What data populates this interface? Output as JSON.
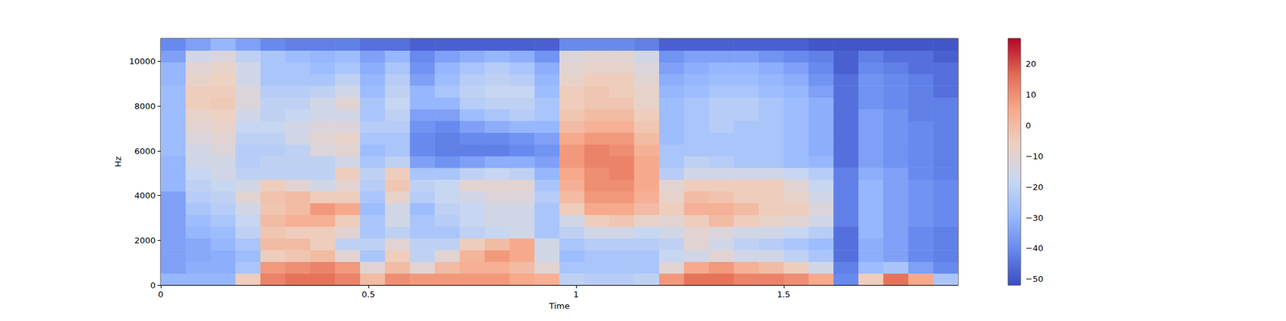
{
  "chart_data": {
    "type": "spectrogram",
    "x_label": "Time",
    "y_label": "Hz",
    "xlim": [
      0,
      1.92
    ],
    "xticks": [
      0,
      0.5,
      1,
      1.5
    ],
    "ylim": [
      0,
      11025
    ],
    "yticks": [
      0,
      2000,
      4000,
      6000,
      8000,
      10000
    ],
    "grid": false,
    "time_bins": [
      0,
      0.06,
      0.12,
      0.18,
      0.24,
      0.3,
      0.36,
      0.42,
      0.48,
      0.54,
      0.6,
      0.66,
      0.72,
      0.78,
      0.84,
      0.9,
      0.96,
      1.02,
      1.08,
      1.14,
      1.2,
      1.26,
      1.32,
      1.38,
      1.44,
      1.5,
      1.56,
      1.62,
      1.68,
      1.74,
      1.8,
      1.86,
      1.92
    ],
    "freq_bins": [
      0,
      525,
      1050,
      1575,
      2100,
      2625,
      3150,
      3675,
      4200,
      4725,
      5250,
      5775,
      6300,
      6825,
      7350,
      7875,
      8400,
      8925,
      9450,
      9975,
      10500,
      11025
    ],
    "cells": [
      [
        -30,
        -35,
        -35,
        -35,
        -35,
        -35,
        -35,
        -35,
        -30,
        -30,
        -30,
        -28,
        -28,
        -28,
        -28,
        -28,
        -28,
        -30,
        -30,
        -35,
        -40
      ],
      [
        -30,
        -32,
        -33,
        -33,
        -30,
        -28,
        -25,
        -22,
        -20,
        -18,
        -15,
        -15,
        -12,
        -10,
        -8,
        -5,
        -5,
        -8,
        -10,
        -15,
        -35
      ],
      [
        -30,
        -32,
        -32,
        -30,
        -28,
        -25,
        -22,
        -20,
        -18,
        -15,
        -15,
        -12,
        -10,
        -8,
        -6,
        -4,
        -5,
        -6,
        -8,
        -12,
        -30
      ],
      [
        -5,
        -25,
        -28,
        -25,
        -20,
        -18,
        -15,
        -10,
        -15,
        -20,
        -22,
        -22,
        -20,
        -18,
        -15,
        -12,
        -12,
        -15,
        -15,
        -20,
        -35
      ],
      [
        12,
        8,
        -5,
        0,
        -3,
        0,
        -3,
        -2,
        -5,
        -20,
        -20,
        -22,
        -20,
        -18,
        -20,
        -20,
        -22,
        -25,
        -25,
        -25,
        -40
      ],
      [
        15,
        10,
        -3,
        0,
        -5,
        3,
        0,
        0,
        -10,
        -20,
        -20,
        -20,
        -15,
        -15,
        -18,
        -20,
        -22,
        -25,
        -25,
        -28,
        -42
      ],
      [
        15,
        12,
        0,
        -5,
        -5,
        3,
        8,
        -5,
        -15,
        -20,
        -20,
        -12,
        -10,
        -12,
        -15,
        -15,
        -20,
        -25,
        -28,
        -30,
        -42
      ],
      [
        12,
        8,
        -10,
        -20,
        -10,
        -5,
        5,
        -5,
        -10,
        -5,
        -15,
        -10,
        -8,
        -12,
        -15,
        -10,
        -15,
        -20,
        -25,
        -28,
        -42
      ],
      [
        0,
        -10,
        -25,
        -20,
        -25,
        -25,
        -28,
        -25,
        -22,
        -20,
        -25,
        -28,
        -25,
        -22,
        -25,
        -25,
        -28,
        -30,
        -32,
        -35,
        -45
      ],
      [
        10,
        0,
        -5,
        -10,
        -20,
        -15,
        -15,
        -8,
        -3,
        -5,
        -20,
        -25,
        -25,
        -22,
        -20,
        -18,
        -20,
        -22,
        -25,
        -30,
        -45
      ],
      [
        8,
        -10,
        -20,
        -20,
        -25,
        -25,
        -28,
        -22,
        -20,
        -25,
        -35,
        -40,
        -40,
        -38,
        -35,
        -30,
        -30,
        -35,
        -38,
        -40,
        -48
      ],
      [
        8,
        0,
        -10,
        -20,
        -25,
        -22,
        -20,
        -18,
        -18,
        -25,
        -38,
        -42,
        -42,
        -40,
        -35,
        -30,
        -25,
        -28,
        -30,
        -35,
        -48
      ],
      [
        8,
        3,
        2,
        -5,
        -20,
        -18,
        -18,
        -15,
        -10,
        -20,
        -35,
        -42,
        -40,
        -35,
        -28,
        -22,
        -20,
        -22,
        -25,
        -32,
        -48
      ],
      [
        8,
        3,
        8,
        0,
        -18,
        -15,
        -15,
        -12,
        -10,
        -18,
        -32,
        -42,
        -40,
        -32,
        -25,
        -20,
        -18,
        -20,
        -22,
        -30,
        -48
      ],
      [
        5,
        0,
        5,
        5,
        -15,
        -15,
        -15,
        -12,
        -10,
        -20,
        -32,
        -40,
        -38,
        -30,
        -22,
        -20,
        -18,
        -22,
        -25,
        -32,
        -48
      ],
      [
        3,
        -10,
        -15,
        -15,
        -25,
        -25,
        -25,
        -22,
        -25,
        -30,
        -35,
        -38,
        -35,
        -30,
        -25,
        -25,
        -28,
        -30,
        -32,
        -38,
        -48
      ],
      [
        -20,
        -25,
        -28,
        -25,
        -20,
        -15,
        -5,
        0,
        3,
        5,
        8,
        8,
        5,
        0,
        -3,
        -5,
        -5,
        -8,
        -10,
        -12,
        -40
      ],
      [
        -22,
        -25,
        -25,
        -22,
        -15,
        -5,
        5,
        8,
        10,
        10,
        12,
        12,
        8,
        3,
        0,
        -3,
        -3,
        -5,
        -8,
        -10,
        -40
      ],
      [
        -22,
        -25,
        -25,
        -22,
        -15,
        -3,
        5,
        8,
        10,
        12,
        12,
        10,
        8,
        3,
        0,
        -3,
        -5,
        -5,
        -8,
        -10,
        -40
      ],
      [
        -20,
        -25,
        -25,
        -22,
        -18,
        -8,
        0,
        3,
        5,
        5,
        5,
        3,
        0,
        -3,
        -5,
        -8,
        -8,
        -10,
        -12,
        -15,
        -42
      ],
      [
        8,
        -10,
        -18,
        -20,
        -15,
        -10,
        -5,
        -8,
        -10,
        -22,
        -25,
        -25,
        -28,
        -28,
        -28,
        -28,
        -30,
        -32,
        -35,
        -38,
        -48
      ],
      [
        15,
        5,
        -15,
        -10,
        -10,
        -5,
        3,
        0,
        -5,
        -15,
        -20,
        -25,
        -25,
        -25,
        -25,
        -25,
        -28,
        -30,
        -32,
        -35,
        -48
      ],
      [
        15,
        8,
        -10,
        -15,
        -12,
        0,
        3,
        -2,
        -5,
        -15,
        -22,
        -25,
        -25,
        -22,
        -22,
        -22,
        -25,
        -28,
        -30,
        -35,
        -48
      ],
      [
        12,
        3,
        -15,
        -20,
        -15,
        -5,
        0,
        -5,
        -5,
        -15,
        -25,
        -25,
        -25,
        -25,
        -22,
        -22,
        -25,
        -28,
        -30,
        -35,
        -48
      ],
      [
        12,
        0,
        -15,
        -22,
        -15,
        -8,
        -5,
        -5,
        -5,
        -15,
        -25,
        -25,
        -25,
        -25,
        -25,
        -25,
        -28,
        -30,
        -32,
        -38,
        -48
      ],
      [
        10,
        -5,
        -20,
        -25,
        -18,
        -10,
        -5,
        -8,
        -10,
        -18,
        -28,
        -28,
        -28,
        -28,
        -28,
        -28,
        -30,
        -32,
        -35,
        -40,
        -48
      ],
      [
        5,
        -15,
        -25,
        -28,
        -22,
        -15,
        -12,
        -15,
        -18,
        -22,
        -30,
        -32,
        -32,
        -32,
        -32,
        -32,
        -35,
        -38,
        -40,
        -42,
        -50
      ],
      [
        -40,
        -42,
        -45,
        -45,
        -45,
        -42,
        -42,
        -42,
        -42,
        -42,
        -45,
        -45,
        -45,
        -45,
        -45,
        -45,
        -45,
        -45,
        -48,
        -48,
        -50
      ],
      [
        -5,
        -28,
        -32,
        -32,
        -30,
        -30,
        -30,
        -30,
        -30,
        -32,
        -35,
        -35,
        -35,
        -35,
        -35,
        -38,
        -38,
        -38,
        -40,
        -42,
        -50
      ],
      [
        15,
        -25,
        -35,
        -35,
        -35,
        -35,
        -35,
        -35,
        -35,
        -35,
        -38,
        -38,
        -38,
        -38,
        -38,
        -40,
        -40,
        -40,
        -42,
        -45,
        -50
      ],
      [
        5,
        -35,
        -40,
        -40,
        -40,
        -38,
        -38,
        -38,
        -38,
        -40,
        -40,
        -40,
        -40,
        -40,
        -42,
        -42,
        -42,
        -42,
        -45,
        -45,
        -50
      ],
      [
        -25,
        -40,
        -42,
        -42,
        -42,
        -40,
        -40,
        -40,
        -40,
        -42,
        -42,
        -42,
        -42,
        -42,
        -42,
        -42,
        -45,
        -45,
        -45,
        -48,
        -50
      ]
    ],
    "colorbar": {
      "range": [
        -51.9,
        28.2
      ],
      "ticks": [
        {
          "value": -50,
          "label": "−50"
        },
        {
          "value": -40,
          "label": "−40"
        },
        {
          "value": -30,
          "label": "−30"
        },
        {
          "value": -20,
          "label": "−20"
        },
        {
          "value": -10,
          "label": "−10"
        },
        0,
        10,
        20
      ]
    }
  }
}
